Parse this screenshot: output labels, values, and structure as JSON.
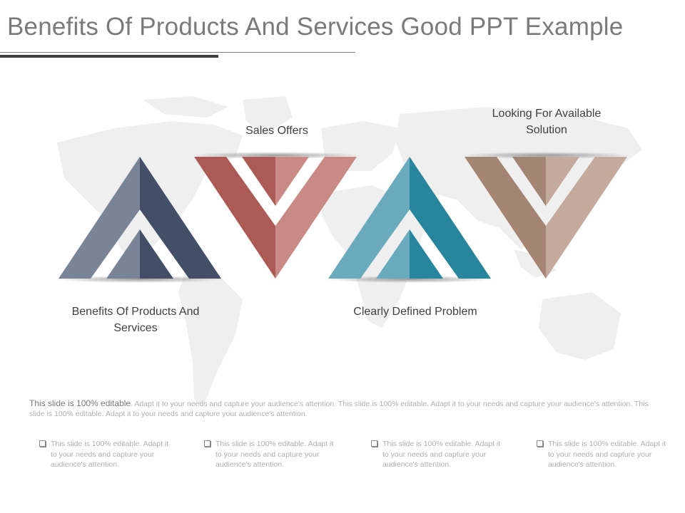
{
  "title": "Benefits Of Products And Services Good PPT Example",
  "labels": {
    "benefits": "Benefits Of Products And Services",
    "sales": "Sales Offers",
    "clearly": "Clearly Defined Problem",
    "looking": "Looking For Available Solution"
  },
  "paragraph": {
    "lead": "This slide is 100% editable",
    "rest": ". Adapt it to your needs and capture your audience's attention. This slide is 100% editable. Adapt it to your needs and capture your audience's attention. This slide is 100% editable. Adapt it to your needs and capture your audience's attention."
  },
  "bullets": [
    "This slide is 100% editable. Adapt it to your needs and capture your audience's attention.",
    "This slide is 100% editable. Adapt it to your needs and capture your audience's attention.",
    "This slide is 100% editable. Adapt it to your needs and capture your audience's attention.",
    "This slide is 100% editable. Adapt it to your needs and capture your audience's attention."
  ],
  "colors": {
    "slate_light": "#7a8497",
    "slate_dark": "#424f66",
    "red_dark": "#ac5a55",
    "red_light": "#c98a86",
    "teal_light": "#69aabd",
    "teal_dark": "#27869d",
    "brown_dark": "#a48472",
    "brown_light": "#c3aa9c"
  }
}
